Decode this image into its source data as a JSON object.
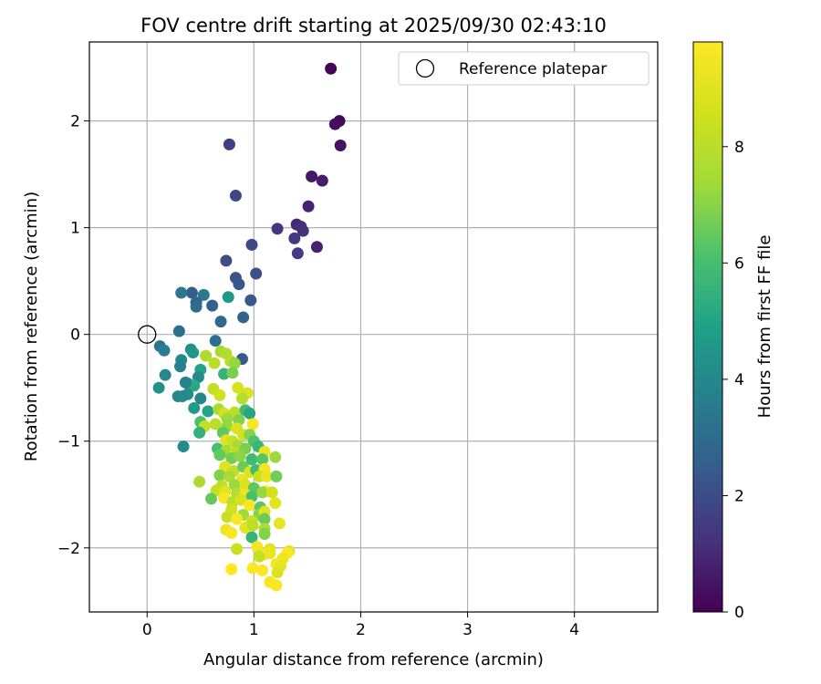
{
  "chart_data": {
    "type": "scatter",
    "title": "FOV centre drift starting at 2025/09/30 02:43:10",
    "xlabel": "Angular distance from reference (arcmin)",
    "ylabel": "Rotation from reference (arcmin)",
    "xlim": [
      -0.54,
      4.78
    ],
    "ylim": [
      -2.6,
      2.74
    ],
    "xticks": [
      0,
      1,
      2,
      3,
      4
    ],
    "xtick_labels": [
      "0",
      "1",
      "2",
      "3",
      "4"
    ],
    "yticks": [
      -2,
      -1,
      0,
      1,
      2
    ],
    "ytick_labels": [
      "−2",
      "−1",
      "0",
      "1",
      "2"
    ],
    "grid": true,
    "legend": {
      "label": "Reference platepar",
      "placement": "top-right"
    },
    "reference_point": {
      "x": 0,
      "y": 0
    },
    "colorbar": {
      "label": "Hours from first FF file",
      "range": [
        0,
        9.8
      ],
      "ticks": [
        0,
        2,
        4,
        6,
        8
      ],
      "tick_labels": [
        "0",
        "2",
        "4",
        "6",
        "8"
      ],
      "colormap": "viridis"
    },
    "series": [
      {
        "name": "FOV centre drift",
        "x_y_c": [
          [
            1.72,
            2.49,
            0.1
          ],
          [
            1.8,
            2.0,
            0.2
          ],
          [
            1.76,
            1.97,
            0.3
          ],
          [
            1.81,
            1.77,
            0.4
          ],
          [
            0.77,
            1.78,
            1.6
          ],
          [
            1.54,
            1.48,
            0.6
          ],
          [
            1.64,
            1.44,
            0.7
          ],
          [
            0.83,
            1.3,
            1.8
          ],
          [
            1.51,
            1.2,
            0.9
          ],
          [
            1.4,
            1.03,
            1.0
          ],
          [
            1.44,
            1.01,
            1.1
          ],
          [
            1.46,
            0.97,
            1.2
          ],
          [
            1.22,
            0.99,
            1.3
          ],
          [
            1.38,
            0.9,
            1.4
          ],
          [
            0.98,
            0.84,
            1.9
          ],
          [
            1.59,
            0.82,
            0.8
          ],
          [
            1.41,
            0.76,
            1.5
          ],
          [
            0.74,
            0.69,
            2.0
          ],
          [
            1.02,
            0.57,
            2.1
          ],
          [
            0.83,
            0.53,
            2.2
          ],
          [
            0.86,
            0.47,
            2.3
          ],
          [
            0.42,
            0.39,
            2.5
          ],
          [
            0.32,
            0.39,
            3.4
          ],
          [
            0.53,
            0.37,
            3.5
          ],
          [
            0.76,
            0.35,
            4.6
          ],
          [
            0.97,
            0.32,
            2.4
          ],
          [
            0.46,
            0.3,
            2.8
          ],
          [
            0.46,
            0.26,
            3.0
          ],
          [
            0.61,
            0.27,
            2.6
          ],
          [
            0.9,
            0.16,
            2.7
          ],
          [
            0.69,
            0.12,
            2.9
          ],
          [
            0.3,
            0.03,
            3.1
          ],
          [
            0.64,
            -0.06,
            3.2
          ],
          [
            0.12,
            -0.11,
            3.3
          ],
          [
            0.16,
            -0.15,
            3.6
          ],
          [
            0.41,
            -0.14,
            4.2
          ],
          [
            0.43,
            -0.17,
            4.5
          ],
          [
            0.69,
            -0.16,
            7.5
          ],
          [
            0.74,
            -0.18,
            7.8
          ],
          [
            0.55,
            -0.2,
            7.7
          ],
          [
            0.89,
            -0.23,
            2.4
          ],
          [
            0.32,
            -0.24,
            3.9
          ],
          [
            0.31,
            -0.3,
            3.7
          ],
          [
            0.78,
            -0.25,
            8.1
          ],
          [
            0.63,
            -0.27,
            8.0
          ],
          [
            0.82,
            -0.27,
            7.2
          ],
          [
            0.5,
            -0.33,
            5.0
          ],
          [
            0.72,
            -0.37,
            5.6
          ],
          [
            0.8,
            -0.36,
            6.8
          ],
          [
            0.17,
            -0.38,
            4.0
          ],
          [
            0.48,
            -0.4,
            4.1
          ],
          [
            0.38,
            -0.46,
            4.4
          ],
          [
            0.44,
            -0.48,
            5.2
          ],
          [
            0.36,
            -0.45,
            3.8
          ],
          [
            0.11,
            -0.5,
            4.3
          ],
          [
            0.38,
            -0.56,
            4.2
          ],
          [
            0.29,
            -0.58,
            3.9
          ],
          [
            0.33,
            -0.58,
            4.0
          ],
          [
            0.5,
            -0.6,
            3.9
          ],
          [
            0.62,
            -0.51,
            8.2
          ],
          [
            0.68,
            -0.57,
            8.5
          ],
          [
            0.85,
            -0.5,
            8.7
          ],
          [
            0.94,
            -0.55,
            8.9
          ],
          [
            0.89,
            -0.6,
            7.9
          ],
          [
            0.44,
            -0.69,
            4.7
          ],
          [
            0.57,
            -0.72,
            5.0
          ],
          [
            0.67,
            -0.7,
            7.6
          ],
          [
            0.72,
            -0.74,
            8.6
          ],
          [
            0.82,
            -0.73,
            8.1
          ],
          [
            0.92,
            -0.71,
            5.9
          ],
          [
            0.96,
            -0.74,
            5.1
          ],
          [
            0.75,
            -0.79,
            7.3
          ],
          [
            0.86,
            -0.8,
            6.9
          ],
          [
            0.5,
            -0.82,
            6.1
          ],
          [
            0.54,
            -0.86,
            8.3
          ],
          [
            0.64,
            -0.84,
            8.0
          ],
          [
            0.75,
            -0.86,
            7.2
          ],
          [
            0.84,
            -0.88,
            8.8
          ],
          [
            0.99,
            -0.84,
            9.6
          ],
          [
            0.49,
            -0.92,
            5.5
          ],
          [
            0.71,
            -0.92,
            6.4
          ],
          [
            0.9,
            -0.94,
            8.6
          ],
          [
            0.96,
            -0.94,
            7.0
          ],
          [
            0.74,
            -0.99,
            9.0
          ],
          [
            0.8,
            -1.0,
            8.4
          ],
          [
            0.85,
            -1.04,
            7.5
          ],
          [
            1.0,
            -1.0,
            6.2
          ],
          [
            0.34,
            -1.05,
            4.1
          ],
          [
            0.66,
            -1.07,
            6.0
          ],
          [
            0.74,
            -1.09,
            7.4
          ],
          [
            0.82,
            -1.11,
            8.1
          ],
          [
            0.92,
            -1.07,
            6.8
          ],
          [
            1.04,
            -1.05,
            5.7
          ],
          [
            1.1,
            -1.1,
            9.4
          ],
          [
            0.68,
            -1.13,
            6.5
          ],
          [
            0.79,
            -1.16,
            6.7
          ],
          [
            0.87,
            -1.14,
            7.1
          ],
          [
            0.98,
            -1.17,
            5.8
          ],
          [
            1.08,
            -1.17,
            6.3
          ],
          [
            1.2,
            -1.15,
            7.3
          ],
          [
            0.73,
            -1.24,
            9.0
          ],
          [
            0.81,
            -1.28,
            8.2
          ],
          [
            0.9,
            -1.24,
            6.6
          ],
          [
            0.96,
            -1.29,
            8.9
          ],
          [
            1.02,
            -1.27,
            5.9
          ],
          [
            1.1,
            -1.26,
            9.5
          ],
          [
            0.68,
            -1.32,
            6.9
          ],
          [
            0.77,
            -1.33,
            7.6
          ],
          [
            0.89,
            -1.36,
            9.2
          ],
          [
            1.05,
            -1.33,
            8.4
          ],
          [
            1.12,
            -1.33,
            9.3
          ],
          [
            1.21,
            -1.33,
            6.7
          ],
          [
            0.49,
            -1.38,
            7.6
          ],
          [
            0.7,
            -1.42,
            8.1
          ],
          [
            0.82,
            -1.41,
            7.3
          ],
          [
            0.92,
            -1.41,
            8.8
          ],
          [
            1.0,
            -1.44,
            6.4
          ],
          [
            1.11,
            -1.47,
            9.7
          ],
          [
            0.65,
            -1.46,
            8.3
          ],
          [
            0.73,
            -1.47,
            9.0
          ],
          [
            0.84,
            -1.49,
            7.9
          ],
          [
            0.92,
            -1.5,
            9.4
          ],
          [
            0.98,
            -1.52,
            6.1
          ],
          [
            1.08,
            -1.48,
            7.2
          ],
          [
            1.17,
            -1.48,
            8.6
          ],
          [
            0.6,
            -1.54,
            6.5
          ],
          [
            0.72,
            -1.53,
            9.6
          ],
          [
            0.8,
            -1.57,
            8.0
          ],
          [
            0.88,
            -1.55,
            8.7
          ],
          [
            0.96,
            -1.6,
            9.8
          ],
          [
            1.06,
            -1.62,
            6.3
          ],
          [
            1.2,
            -1.58,
            9.1
          ],
          [
            0.79,
            -1.64,
            8.6
          ],
          [
            0.9,
            -1.69,
            7.4
          ],
          [
            1.05,
            -1.69,
            7.0
          ],
          [
            1.1,
            -1.66,
            9.0
          ],
          [
            0.75,
            -1.71,
            8.3
          ],
          [
            0.84,
            -1.73,
            9.7
          ],
          [
            1.1,
            -1.73,
            6.6
          ],
          [
            0.98,
            -1.75,
            8.5
          ],
          [
            1.24,
            -1.77,
            9.2
          ],
          [
            0.74,
            -1.83,
            9.4
          ],
          [
            0.79,
            -1.86,
            9.6
          ],
          [
            0.92,
            -1.81,
            9.0
          ],
          [
            0.99,
            -1.79,
            8.1
          ],
          [
            1.1,
            -1.82,
            7.7
          ],
          [
            1.1,
            -1.87,
            6.9
          ],
          [
            0.98,
            -1.9,
            5.6
          ],
          [
            1.03,
            -1.99,
            9.5
          ],
          [
            1.15,
            -2.01,
            9.0
          ],
          [
            0.84,
            -2.01,
            8.4
          ],
          [
            1.1,
            -2.06,
            9.7
          ],
          [
            1.05,
            -2.08,
            8.3
          ],
          [
            1.15,
            -2.05,
            9.3
          ],
          [
            1.33,
            -2.03,
            9.1
          ],
          [
            1.31,
            -2.05,
            9.8
          ],
          [
            1.27,
            -2.1,
            9.4
          ],
          [
            1.21,
            -2.15,
            9.6
          ],
          [
            1.25,
            -2.17,
            9.2
          ],
          [
            0.99,
            -2.19,
            9.7
          ],
          [
            1.08,
            -2.21,
            9.8
          ],
          [
            1.22,
            -2.23,
            8.9
          ],
          [
            0.79,
            -2.2,
            9.8
          ],
          [
            1.15,
            -2.32,
            9.7
          ],
          [
            1.21,
            -2.35,
            9.7
          ]
        ]
      }
    ]
  }
}
